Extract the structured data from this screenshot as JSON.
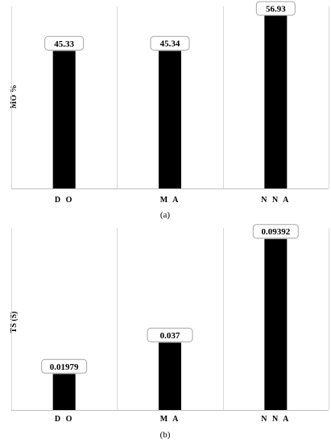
{
  "chart_data": [
    {
      "type": "bar",
      "categories": [
        "D O",
        "M A",
        "N N A"
      ],
      "values": [
        45.33,
        45.34,
        56.93
      ],
      "value_labels": [
        "45.33",
        "45.34",
        "56.93"
      ],
      "title": "",
      "xlabel": "",
      "ylabel": "MO %",
      "ylim": [
        0,
        60
      ],
      "grid": "vertical category separators",
      "legend": "none",
      "caption": "(a)",
      "bar_color": "#000000"
    },
    {
      "type": "bar",
      "categories": [
        "D O",
        "M A",
        "N N A"
      ],
      "values": [
        0.01979,
        0.037,
        0.09392
      ],
      "value_labels": [
        "0.01979",
        "0.037",
        "0.09392"
      ],
      "title": "",
      "xlabel": "",
      "ylabel": "TS (S)",
      "ylim": [
        0,
        0.1
      ],
      "grid": "vertical category separators",
      "legend": "none",
      "caption": "(b)",
      "bar_color": "#000000"
    }
  ]
}
